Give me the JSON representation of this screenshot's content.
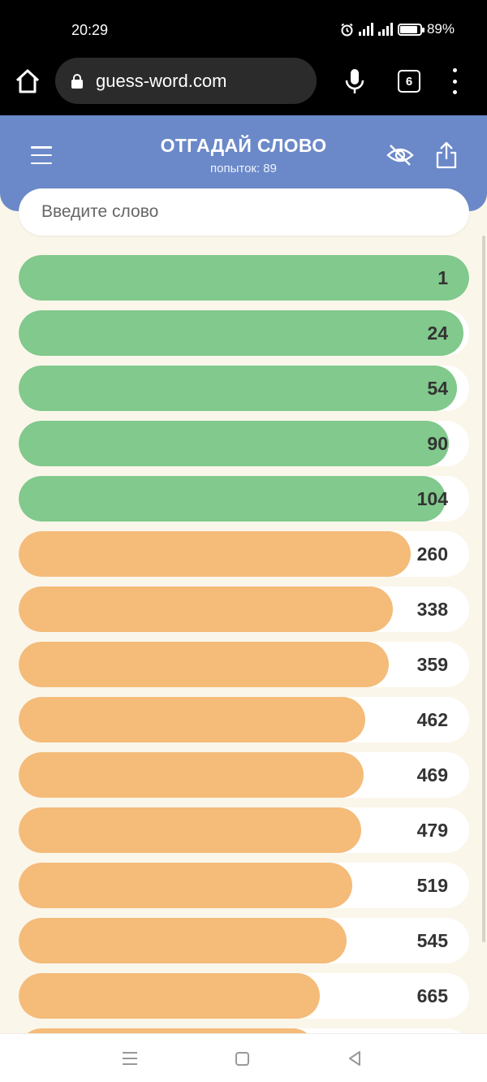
{
  "status_bar": {
    "time": "20:29",
    "battery": "89%",
    "battery_level": 0.89
  },
  "browser": {
    "url": "guess-word.com",
    "tab_count": "6"
  },
  "app": {
    "title": "ОТГАДАЙ СЛОВО",
    "attempts": "попыток: 89"
  },
  "input": {
    "placeholder": "Введите слово"
  },
  "guesses": [
    {
      "word": "",
      "rank": "1",
      "color": "green",
      "fill": 1.0
    },
    {
      "word": "",
      "rank": "24",
      "color": "green",
      "fill": 0.988
    },
    {
      "word": "",
      "rank": "54",
      "color": "green",
      "fill": 0.973
    },
    {
      "word": "",
      "rank": "90",
      "color": "green",
      "fill": 0.955
    },
    {
      "word": "",
      "rank": "104",
      "color": "green",
      "fill": 0.948
    },
    {
      "word": "",
      "rank": "260",
      "color": "orange",
      "fill": 0.87
    },
    {
      "word": "",
      "rank": "338",
      "color": "orange",
      "fill": 0.831
    },
    {
      "word": "",
      "rank": "359",
      "color": "orange",
      "fill": 0.821
    },
    {
      "word": "",
      "rank": "462",
      "color": "orange",
      "fill": 0.769
    },
    {
      "word": "",
      "rank": "469",
      "color": "orange",
      "fill": 0.766
    },
    {
      "word": "",
      "rank": "479",
      "color": "orange",
      "fill": 0.761
    },
    {
      "word": "",
      "rank": "519",
      "color": "orange",
      "fill": 0.741
    },
    {
      "word": "",
      "rank": "545",
      "color": "orange",
      "fill": 0.728
    },
    {
      "word": "",
      "rank": "665",
      "color": "orange",
      "fill": 0.668
    },
    {
      "word": "",
      "rank": "",
      "color": "orange",
      "fill": 0.66
    }
  ],
  "colors": {
    "header": "#6b89c9",
    "green": "#81c98c",
    "orange": "#f4bb79",
    "background": "#fbf6ea"
  },
  "icons": [
    "home-icon",
    "lock-icon",
    "mic-icon",
    "tabs-icon",
    "more-icon",
    "menu-icon",
    "eye-off-icon",
    "share-icon",
    "nav-menu-icon",
    "nav-home-icon",
    "nav-back-icon"
  ]
}
